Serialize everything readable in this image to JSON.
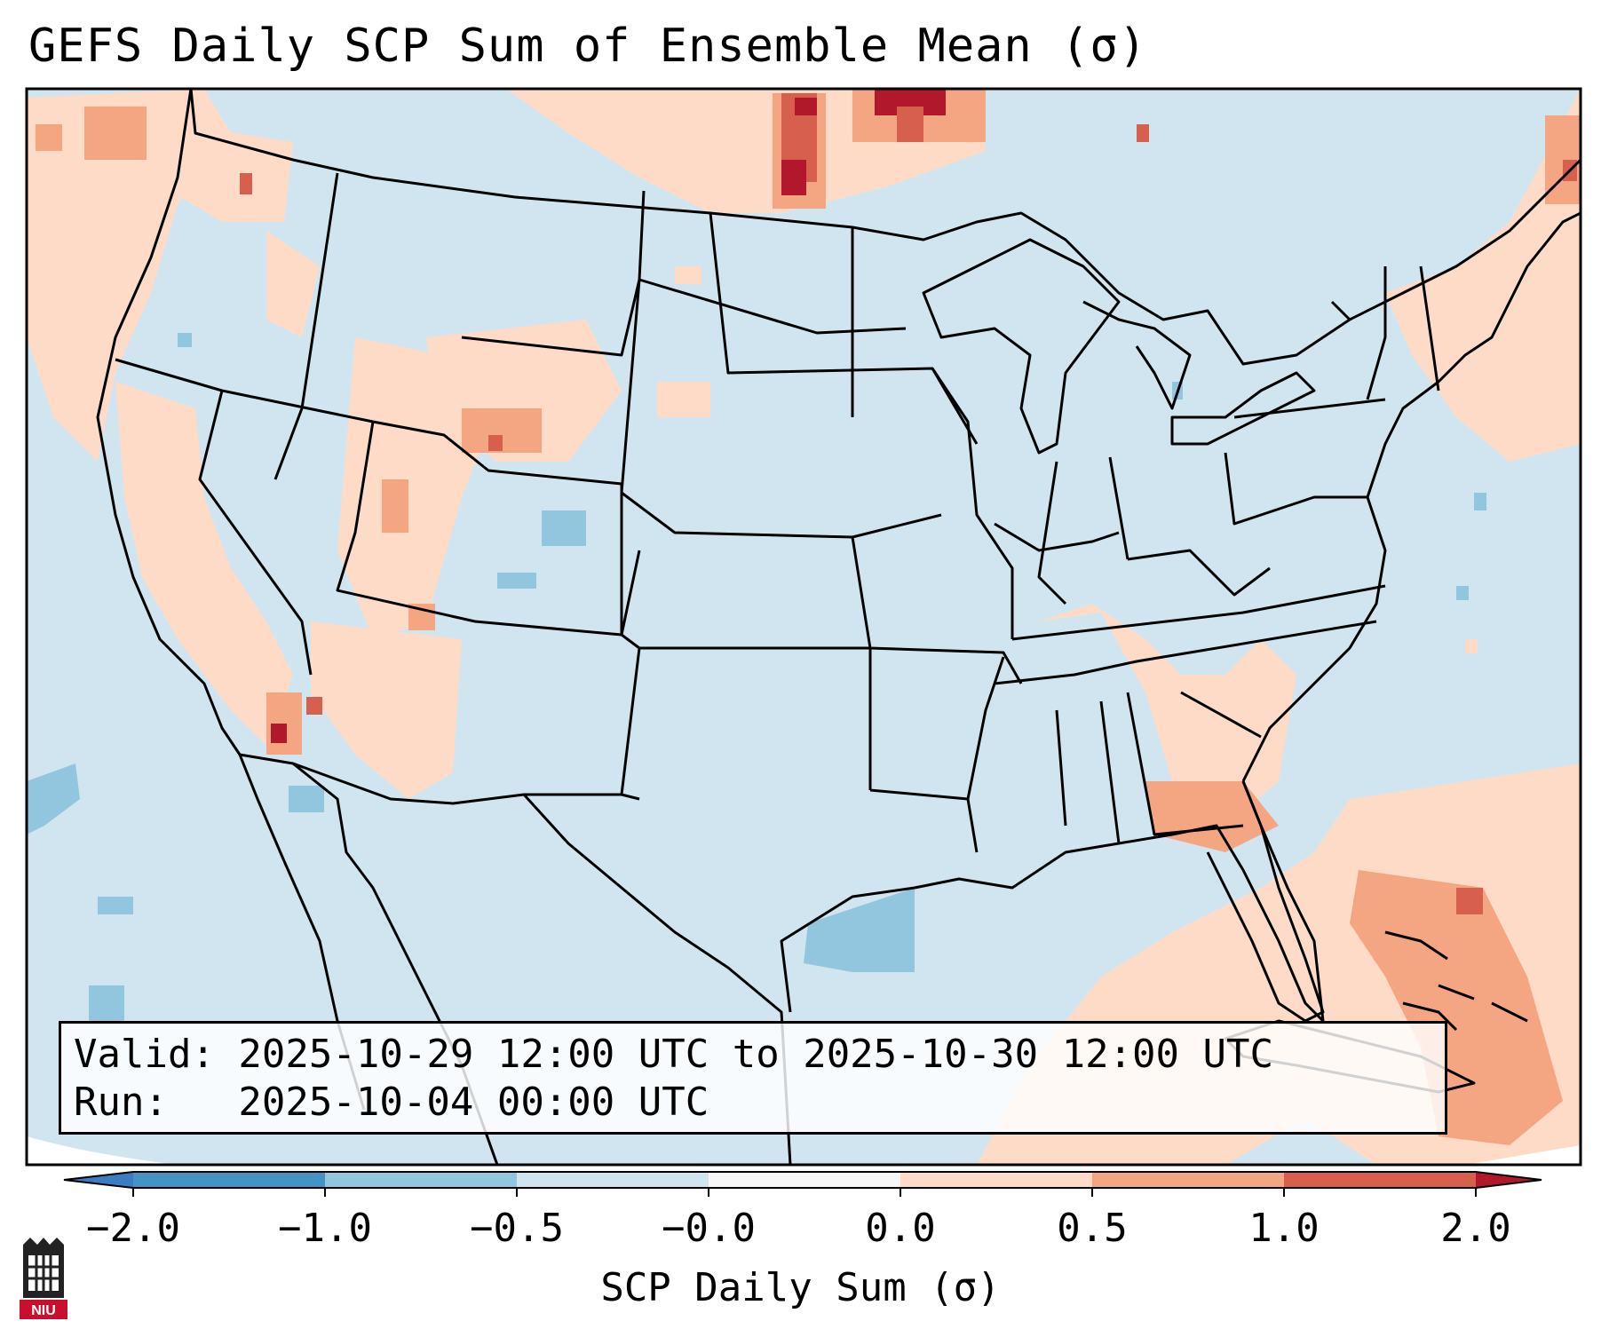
{
  "title": "GEFS Daily SCP Sum of Ensemble Mean (σ)",
  "info": {
    "valid_line": "Valid: 2025-10-29 12:00 UTC to 2025-10-30 12:00 UTC",
    "run_line": "Run:   2025-10-04 00:00 UTC"
  },
  "colorbar": {
    "label": "SCP Daily Sum (σ)",
    "ticks": [
      "−2.0",
      "−1.0",
      "−0.5",
      "−0.0",
      "0.0",
      "0.5",
      "1.0",
      "2.0"
    ],
    "colors": {
      "extend_low": "#3a7dc0",
      "bin_neg2_neg1": "#4393c3",
      "bin_neg1_neg05": "#92c5de",
      "bin_neg05_0": "#d1e5f0",
      "bin_0_zero": "#f7f7f7",
      "bin_0_05": "#fddbc7",
      "bin_05_1": "#f4a582",
      "bin_1_2": "#d6604d",
      "extend_high": "#b2182b"
    }
  },
  "logo": {
    "text": "NIU"
  },
  "map_colors": {
    "background": "#d1e5f0",
    "light_red": "#fddbc7",
    "mid_red": "#f4a582",
    "strong_red": "#d6604d",
    "dark_red": "#b2182b",
    "light_blue": "#92c5de",
    "border": "#000000"
  }
}
